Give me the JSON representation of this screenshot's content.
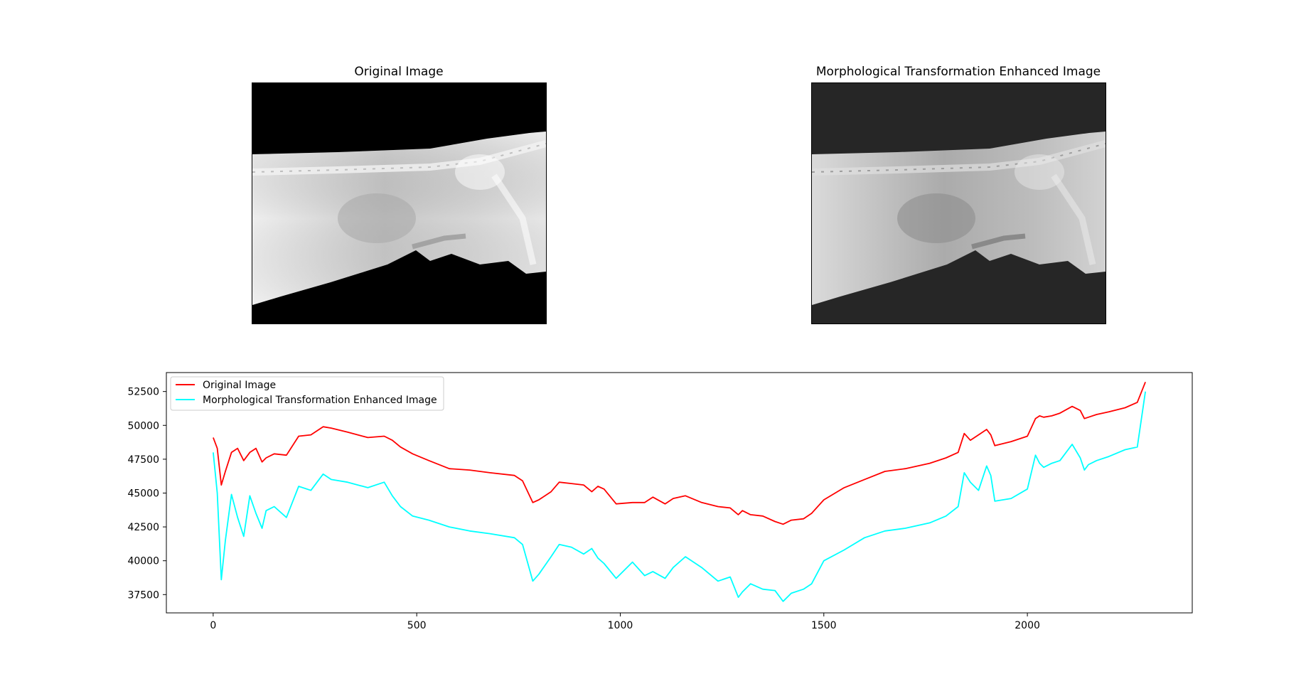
{
  "panels": [
    {
      "title": "Original Image",
      "background": "#000000"
    },
    {
      "title": "Morphological Transformation Enhanced Image",
      "background": "#262626"
    }
  ],
  "chart_data": {
    "type": "line",
    "title": "",
    "xlabel": "",
    "ylabel": "",
    "xlim": [
      -115,
      2405
    ],
    "ylim": [
      36150,
      53900
    ],
    "xticks": [
      0,
      500,
      1000,
      1500,
      2000
    ],
    "yticks": [
      37500,
      40000,
      42500,
      45000,
      47500,
      50000,
      52500
    ],
    "xtick_labels": [
      "0",
      "500",
      "1000",
      "1500",
      "2000"
    ],
    "ytick_labels": [
      "37500",
      "40000",
      "42500",
      "45000",
      "47500",
      "50000",
      "52500"
    ],
    "grid": false,
    "legend": "top-left",
    "series": [
      {
        "name": "Original Image",
        "color": "#ff0000",
        "x": [
          0,
          10,
          20,
          30,
          45,
          60,
          75,
          90,
          105,
          120,
          130,
          150,
          180,
          210,
          240,
          270,
          290,
          330,
          380,
          420,
          440,
          460,
          490,
          530,
          580,
          630,
          680,
          740,
          760,
          785,
          800,
          830,
          850,
          880,
          910,
          930,
          945,
          960,
          990,
          1030,
          1060,
          1080,
          1110,
          1130,
          1160,
          1200,
          1240,
          1270,
          1290,
          1300,
          1320,
          1350,
          1380,
          1400,
          1420,
          1450,
          1470,
          1500,
          1550,
          1600,
          1650,
          1700,
          1760,
          1800,
          1830,
          1845,
          1860,
          1880,
          1900,
          1910,
          1920,
          1960,
          2000,
          2020,
          2030,
          2040,
          2060,
          2080,
          2110,
          2130,
          2140,
          2150,
          2170,
          2200,
          2240,
          2270,
          2290
        ],
        "y": [
          49100,
          48300,
          45600,
          46600,
          48000,
          48300,
          47400,
          48000,
          48300,
          47300,
          47600,
          47900,
          47800,
          49200,
          49300,
          49900,
          49800,
          49500,
          49100,
          49200,
          48900,
          48400,
          47900,
          47400,
          46800,
          46700,
          46500,
          46300,
          45900,
          44300,
          44500,
          45100,
          45800,
          45700,
          45600,
          45100,
          45500,
          45300,
          44200,
          44300,
          44300,
          44700,
          44200,
          44600,
          44800,
          44300,
          44000,
          43900,
          43400,
          43700,
          43400,
          43300,
          42900,
          42700,
          43000,
          43100,
          43500,
          44500,
          45400,
          46000,
          46600,
          46800,
          47200,
          47600,
          48000,
          49400,
          48900,
          49300,
          49700,
          49300,
          48500,
          48800,
          49200,
          50500,
          50700,
          50600,
          50700,
          50900,
          51400,
          51100,
          50500,
          50600,
          50800,
          51000,
          51300,
          51700,
          53200
        ]
      },
      {
        "name": "Morphological Transformation Enhanced Image",
        "color": "#00ffff",
        "x": [
          0,
          10,
          20,
          30,
          45,
          60,
          75,
          90,
          105,
          120,
          130,
          150,
          180,
          210,
          240,
          270,
          290,
          330,
          380,
          420,
          440,
          460,
          490,
          530,
          580,
          630,
          680,
          740,
          760,
          785,
          800,
          830,
          850,
          880,
          910,
          930,
          945,
          960,
          990,
          1030,
          1060,
          1080,
          1110,
          1130,
          1160,
          1200,
          1240,
          1270,
          1290,
          1300,
          1320,
          1350,
          1380,
          1400,
          1420,
          1450,
          1470,
          1500,
          1550,
          1600,
          1650,
          1700,
          1760,
          1800,
          1830,
          1845,
          1860,
          1880,
          1900,
          1910,
          1920,
          1960,
          2000,
          2020,
          2030,
          2040,
          2060,
          2080,
          2110,
          2130,
          2140,
          2150,
          2170,
          2200,
          2240,
          2270,
          2290
        ],
        "y": [
          48000,
          45000,
          38600,
          41500,
          44900,
          43200,
          41800,
          44800,
          43500,
          42400,
          43700,
          44000,
          43200,
          45500,
          45200,
          46400,
          46000,
          45800,
          45400,
          45800,
          44800,
          44000,
          43300,
          43000,
          42500,
          42200,
          42000,
          41700,
          41200,
          38500,
          39000,
          40300,
          41200,
          41000,
          40500,
          40900,
          40200,
          39800,
          38700,
          39900,
          38900,
          39200,
          38700,
          39500,
          40300,
          39500,
          38500,
          38800,
          37300,
          37700,
          38300,
          37900,
          37800,
          37000,
          37600,
          37900,
          38300,
          40000,
          40800,
          41700,
          42200,
          42400,
          42800,
          43300,
          44000,
          46500,
          45800,
          45200,
          47000,
          46300,
          44400,
          44600,
          45300,
          47800,
          47200,
          46900,
          47200,
          47400,
          48600,
          47600,
          46700,
          47100,
          47400,
          47700,
          48200,
          48400,
          52500
        ]
      }
    ]
  }
}
